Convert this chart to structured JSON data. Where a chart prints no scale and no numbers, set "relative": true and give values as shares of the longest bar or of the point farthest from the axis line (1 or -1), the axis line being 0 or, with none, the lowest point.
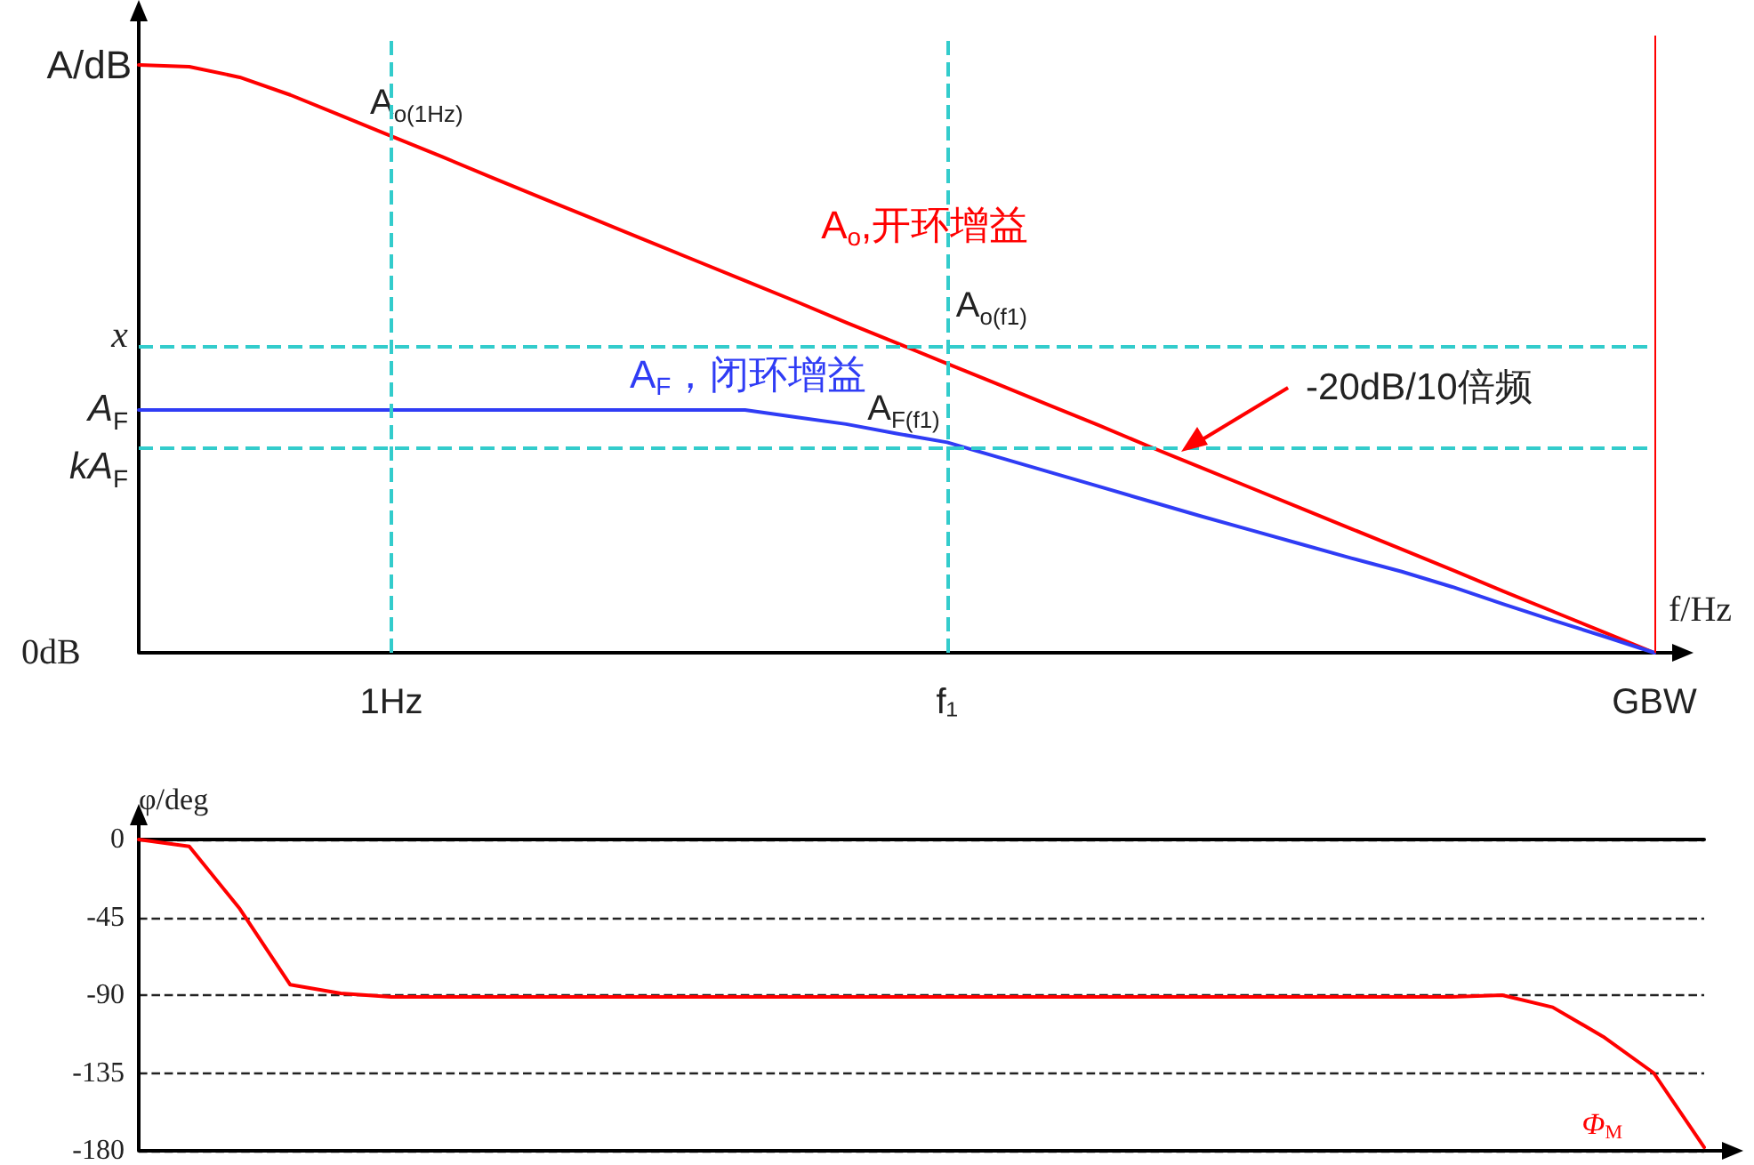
{
  "chart_data": [
    {
      "type": "line",
      "relative": true,
      "ylabel": "A/dB",
      "xlabel": "f/Hz",
      "marker": "none",
      "line_style": "solid",
      "legend": false,
      "categories": [
        null,
        null,
        null,
        null,
        null,
        "1Hz",
        null,
        null,
        null,
        null,
        null,
        null,
        null,
        null,
        null,
        null,
        "f₁",
        null,
        null,
        null,
        null,
        null,
        null,
        null,
        null,
        null,
        null,
        null,
        null,
        null,
        "GBW"
      ],
      "series": [
        {
          "name": "A$_{o}$,开环增益",
          "color": "#ff0000",
          "values": [
            1,
            0.997,
            0.979,
            0.949,
            0.914,
            0.879,
            0.844,
            0.808,
            0.773,
            0.738,
            0.703,
            0.668,
            0.633,
            0.598,
            0.562,
            0.527,
            0.492,
            0.457,
            0.422,
            0.387,
            0.351,
            0.316,
            0.281,
            0.246,
            0.211,
            0.176,
            0.141,
            0.105,
            0.07,
            0.035,
            0
          ]
        },
        {
          "name": "A$_{F}$，闭环增益",
          "color": "#2f3cf5",
          "values": [
            0.413,
            0.413,
            0.413,
            0.413,
            0.413,
            0.413,
            0.413,
            0.413,
            0.413,
            0.413,
            0.413,
            0.413,
            0.413,
            0.401,
            0.389,
            0.373,
            0.358,
            0.333,
            0.308,
            0.283,
            0.258,
            0.233,
            0.209,
            0.185,
            0.161,
            0.138,
            0.112,
            0.083,
            0.055,
            0.028,
            0
          ]
        }
      ],
      "ref_lines": [
        {
          "axis": "x",
          "value": "1Hz",
          "label": null,
          "color": "#33cccc",
          "line_style": "dashed"
        },
        {
          "axis": "x",
          "value": "f₁",
          "label": null,
          "color": "#33cccc",
          "line_style": "dashed"
        },
        {
          "axis": "y",
          "value": 0.524,
          "label": "x",
          "color": "#33cccc",
          "line_style": "dashed"
        },
        {
          "axis": "y",
          "value": 0.346,
          "label": "kA$_{F}$",
          "color": "#33cccc",
          "line_style": "dashed"
        },
        {
          "axis": "x",
          "value": "GBW",
          "label": null,
          "color": "#ff0000",
          "line_style": "solid"
        }
      ],
      "annotations": [
        {
          "text": "A$_{o(1Hz)}$",
          "x": "1Hz",
          "y": 0.879
        },
        {
          "text": "A$_{o(f1)}$",
          "x": "f₁",
          "y": 0.492
        },
        {
          "text": "A$_{F(f1)}$",
          "x": "f₁",
          "y": 0.358
        },
        "A$_{F}$",
        "0dB",
        "-20dB/10倍频"
      ]
    },
    {
      "type": "line",
      "ylabel": "φ/deg",
      "marker": "none",
      "line_style": "solid",
      "legend": false,
      "grid": "y",
      "tick_labels": "y",
      "categories": [
        null,
        null,
        null,
        null,
        null,
        null,
        null,
        null,
        null,
        null,
        null,
        null,
        null,
        null,
        null,
        null,
        null,
        null,
        null,
        null,
        null,
        null,
        null,
        null,
        null,
        null,
        null,
        null,
        null,
        null,
        null,
        null
      ],
      "ylim": [
        -180,
        0
      ],
      "yticks": [
        0,
        -45,
        -90,
        -135,
        -180
      ],
      "series": [
        {
          "color": "#ff0000",
          "values": [
            0,
            -4,
            -40,
            -84,
            -89,
            -91,
            -91,
            -91,
            -91,
            -91,
            -91,
            -91,
            -91,
            -91,
            -91,
            -91,
            -91,
            -91,
            -91,
            -91,
            -91,
            -91,
            -91,
            -91,
            -91,
            -91,
            -91,
            -90,
            -97,
            -114,
            -135,
            -178
          ]
        }
      ],
      "annotations": [
        "Φ$_{M}$"
      ]
    }
  ]
}
